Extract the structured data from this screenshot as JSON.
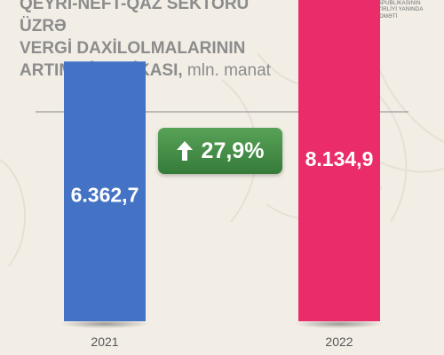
{
  "header": {
    "title_lines": [
      "QEYRİ-NEFT-QAZ SEKTORU ÜZRƏ",
      "VERGİ DAXİLOLMALARININ"
    ],
    "title_last": "ARTIM DİNAMİKASI,",
    "title_unit": " mln. manat",
    "org_lines": [
      "AZƏRBAYCAN RESPUBLİKASININ",
      "İQTİSADİYYAT NAZİRLİYİ YANINDA",
      "DÖVLƏT VERGİ XİDMƏTİ"
    ]
  },
  "growth": {
    "label": "27,9%",
    "direction": "up",
    "color": "#3e8b44"
  },
  "colors": {
    "background": "#f2eee6",
    "bar_2021": "#4472c4",
    "bar_2022": "#ea2c6a",
    "hatch": "#c8c8c8"
  },
  "chart_data": {
    "type": "bar",
    "categories": [
      "2021",
      "2022"
    ],
    "values": [
      6362.7,
      8134.9
    ],
    "value_labels": [
      "6.362,7",
      "8.134,9"
    ],
    "title": "QEYRİ-NEFT-QAZ SEKTORU ÜZRƏ VERGİ DAXİLOLMALARININ ARTIM DİNAMİKASI, mln. manat",
    "xlabel": "",
    "ylabel": "",
    "grid": false,
    "legend": "none"
  }
}
